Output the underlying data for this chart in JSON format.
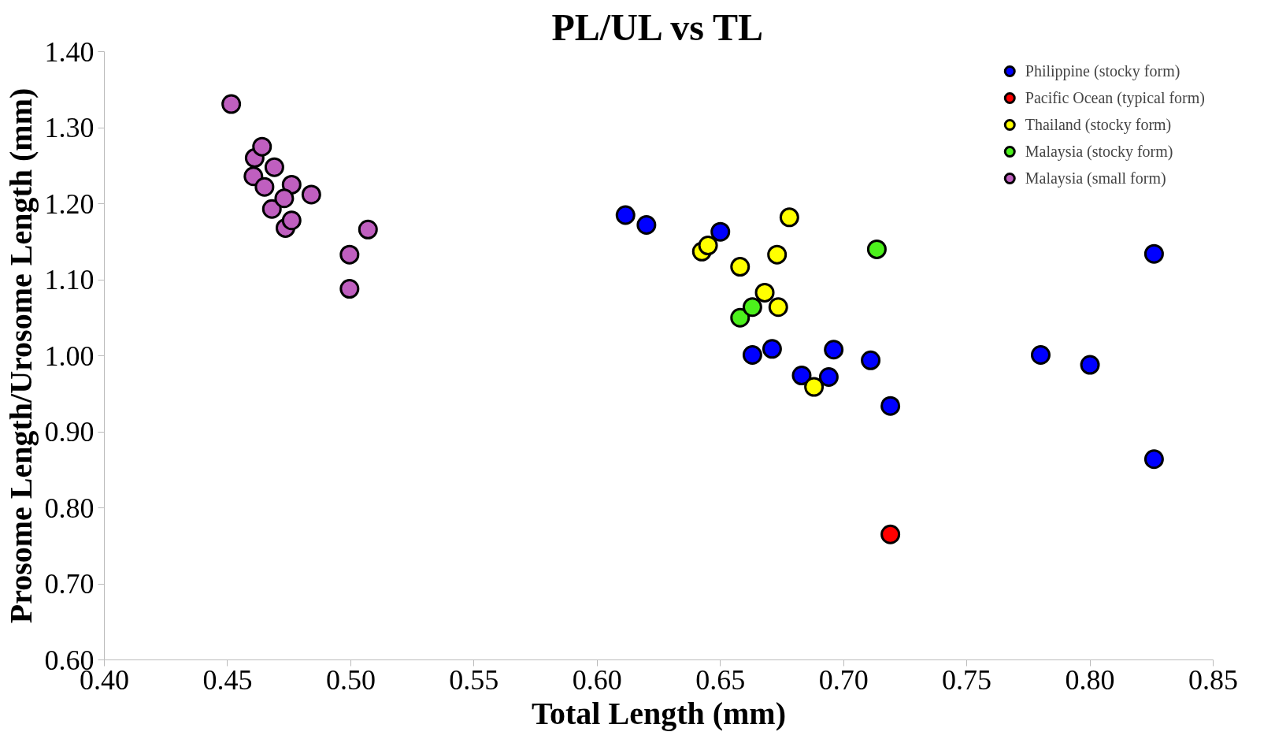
{
  "chart_data": {
    "type": "scatter",
    "title": "PL/UL vs TL",
    "xlabel": "Total Length (mm)",
    "ylabel": "Prosome Length/Urosome Length (mm)",
    "xlim": [
      0.4,
      0.85
    ],
    "xticks": [
      {
        "value": 0.4,
        "label": "0.40"
      },
      {
        "value": 0.45,
        "label": "0.45"
      },
      {
        "value": 0.5,
        "label": "0.50"
      },
      {
        "value": 0.55,
        "label": "0.55"
      },
      {
        "value": 0.6,
        "label": "0.60"
      },
      {
        "value": 0.65,
        "label": "0.65"
      },
      {
        "value": 0.7,
        "label": "0.70"
      },
      {
        "value": 0.75,
        "label": "0.75"
      },
      {
        "value": 0.8,
        "label": "0.80"
      },
      {
        "value": 0.85,
        "label": "0.85"
      }
    ],
    "ylim": [
      0.6,
      1.4
    ],
    "yticks": [
      {
        "value": 0.6,
        "label": "0.60"
      },
      {
        "value": 0.7,
        "label": "0.70"
      },
      {
        "value": 0.8,
        "label": "0.80"
      },
      {
        "value": 0.9,
        "label": "0.90"
      },
      {
        "value": 1.0,
        "label": "1.00"
      },
      {
        "value": 1.1,
        "label": "1.10"
      },
      {
        "value": 1.2,
        "label": "1.20"
      },
      {
        "value": 1.3,
        "label": "1.30"
      },
      {
        "value": 1.4,
        "label": "1.40"
      }
    ],
    "grid": false,
    "legend": "top right",
    "marker": "circle",
    "series": [
      {
        "name": "Philippine (stocky form)",
        "color": "#0000ff",
        "x": [
          0.6115,
          0.62,
          0.65,
          0.663,
          0.671,
          0.683,
          0.694,
          0.696,
          0.711,
          0.719,
          0.78,
          0.8,
          0.826,
          0.826
        ],
        "values": [
          1.185,
          1.172,
          1.163,
          1.001,
          1.009,
          0.974,
          0.972,
          1.008,
          0.994,
          0.934,
          1.001,
          0.988,
          1.134,
          0.864
        ]
      },
      {
        "name": "Pacific Ocean (typical form)",
        "color": "#ff0000",
        "x": [
          0.719
        ],
        "values": [
          0.765
        ]
      },
      {
        "name": "Thailand (stocky form)",
        "color": "#ffff00",
        "x": [
          0.6425,
          0.645,
          0.658,
          0.678,
          0.673,
          0.668,
          0.6735,
          0.688
        ],
        "values": [
          1.137,
          1.145,
          1.117,
          1.182,
          1.133,
          1.083,
          1.064,
          0.959
        ]
      },
      {
        "name": "Malaysia (stocky form)",
        "color": "#4cf01c",
        "x": [
          0.7135,
          0.658,
          0.663
        ],
        "values": [
          1.14,
          1.05,
          1.064
        ]
      },
      {
        "name": "Malaysia (small form)",
        "color": "#bf5fbf",
        "x": [
          0.4515,
          0.461,
          0.464,
          0.4605,
          0.465,
          0.469,
          0.476,
          0.484,
          0.468,
          0.4735,
          0.476,
          0.473,
          0.507,
          0.4995,
          0.4995
        ],
        "values": [
          1.331,
          1.26,
          1.275,
          1.236,
          1.222,
          1.248,
          1.225,
          1.212,
          1.193,
          1.168,
          1.178,
          1.207,
          1.166,
          1.133,
          1.088
        ]
      }
    ]
  }
}
